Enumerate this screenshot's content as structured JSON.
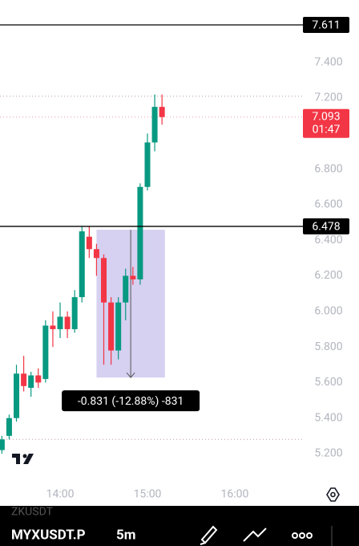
{
  "chart_data": {
    "type": "candlestick",
    "symbol": "MYXUSDT.P",
    "interval": "5m",
    "faded_symbol": "ZKUSDT",
    "x": [
      800,
      805,
      810,
      815,
      820,
      825,
      830,
      835,
      840,
      845,
      850,
      855,
      860,
      865,
      870,
      875,
      880,
      885,
      890,
      895,
      900,
      905,
      910
    ],
    "open": [
      5.22,
      5.3,
      5.4,
      5.65,
      5.57,
      5.64,
      5.62,
      5.92,
      5.9,
      5.97,
      5.9,
      6.08,
      6.42,
      6.35,
      6.3,
      6.05,
      5.78,
      6.05,
      6.2,
      6.18,
      6.7,
      6.95,
      7.15
    ],
    "high": [
      5.3,
      5.42,
      5.7,
      5.75,
      5.66,
      5.68,
      5.95,
      6.0,
      6.05,
      6.0,
      6.12,
      6.48,
      6.48,
      6.38,
      6.32,
      6.08,
      6.08,
      6.24,
      6.25,
      6.72,
      7.0,
      7.22,
      7.22
    ],
    "low": [
      5.2,
      5.28,
      5.38,
      5.55,
      5.52,
      5.57,
      5.6,
      5.8,
      5.85,
      5.85,
      5.88,
      6.05,
      6.3,
      6.2,
      5.7,
      5.7,
      5.73,
      5.95,
      6.15,
      6.15,
      6.68,
      6.9,
      7.05
    ],
    "close": [
      5.28,
      5.4,
      5.65,
      5.58,
      5.64,
      5.6,
      5.92,
      5.9,
      5.97,
      5.9,
      6.08,
      6.45,
      6.35,
      6.3,
      6.05,
      5.78,
      6.05,
      6.2,
      6.18,
      6.7,
      6.95,
      7.15,
      7.093
    ],
    "up_color": "#089981",
    "down_color": "#f23645",
    "xlim": [
      798.7,
      1002.4
    ],
    "xticks": [
      {
        "value": 840,
        "label": "14:00"
      },
      {
        "value": 900,
        "label": "15:00"
      },
      {
        "value": 960,
        "label": "16:00"
      }
    ],
    "ylim": [
      5.087,
      7.751
    ],
    "yticks": [
      {
        "value": 5.2,
        "label": "5.200"
      },
      {
        "value": 5.4,
        "label": "5.400"
      },
      {
        "value": 5.6,
        "label": "5.600"
      },
      {
        "value": 5.8,
        "label": "5.800"
      },
      {
        "value": 6.0,
        "label": "6.000"
      },
      {
        "value": 6.2,
        "label": "6.200"
      },
      {
        "value": 6.4,
        "label": "6.400"
      },
      {
        "value": 6.6,
        "label": "6.600"
      },
      {
        "value": 6.8,
        "label": "6.800"
      },
      {
        "value": 7.0,
        "label": "7.000"
      },
      {
        "value": 7.2,
        "label": "7.200"
      },
      {
        "value": 7.4,
        "label": "7.400"
      }
    ],
    "price_lines": [
      7.611,
      6.478
    ],
    "dotted_levels": [
      7.21,
      5.28
    ],
    "last_price": 7.093,
    "countdown": "01:47",
    "measure": {
      "from": 6.459,
      "to": 5.628,
      "x_start": 865,
      "x_end": 912,
      "label": "-0.831 (-12.88%) -831"
    }
  }
}
